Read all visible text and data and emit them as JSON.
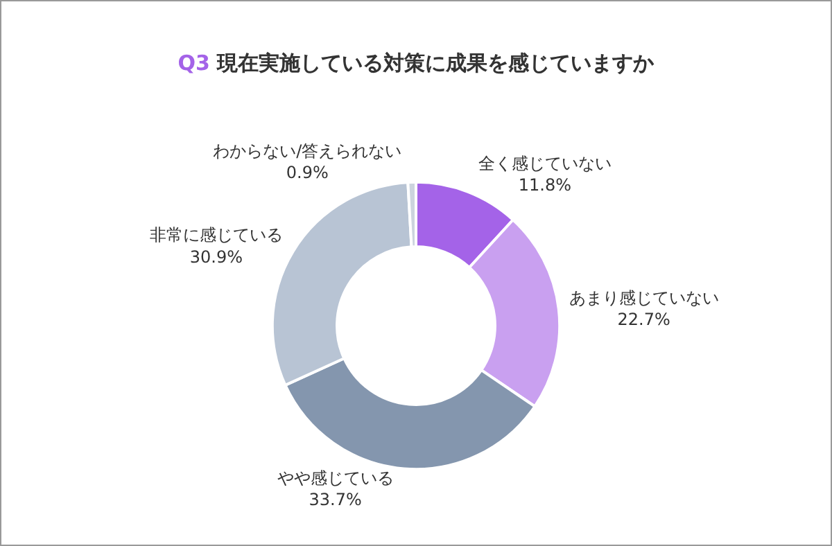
{
  "chart_data": {
    "type": "donut",
    "title": "Q3 現在実施している対策に成果を感じていますか",
    "categories": [
      "全く感じていない",
      "あまり感じていない",
      "やや感じている",
      "非常に感じている",
      "わからない/答えられない"
    ],
    "values": [
      11.8,
      22.7,
      33.7,
      30.9,
      0.9
    ],
    "value_labels": [
      "11.8%",
      "22.7%",
      "33.7%",
      "30.9%",
      "0.9%"
    ],
    "colors": [
      "#a463e8",
      "#c9a0f0",
      "#8496ae",
      "#b8c4d4",
      "#ccd4de"
    ],
    "legend": false
  }
}
